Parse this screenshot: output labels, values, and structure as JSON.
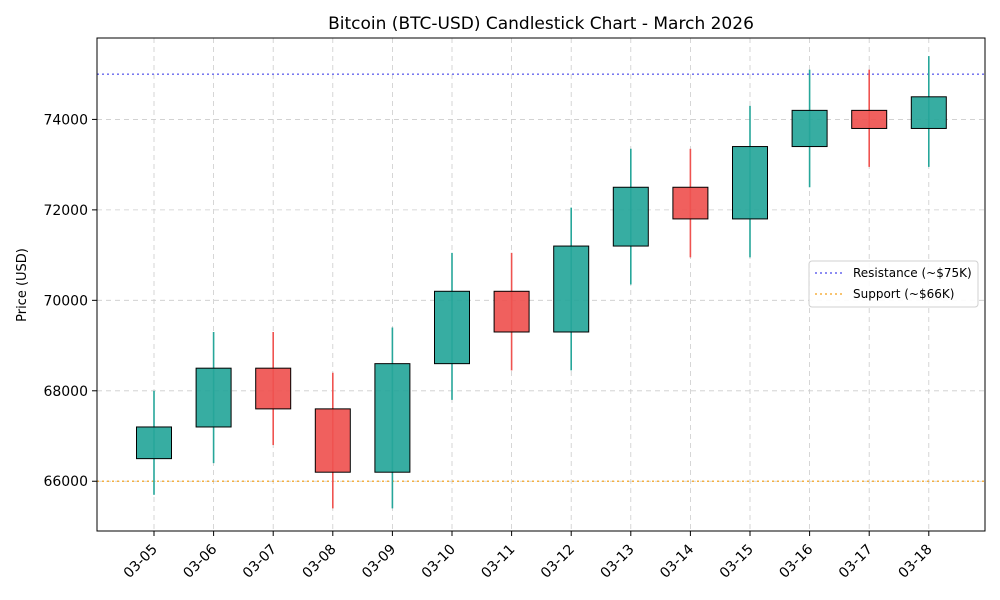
{
  "chart_data": {
    "type": "candlestick",
    "title": "Bitcoin (BTC-USD) Candlestick Chart - March 2026",
    "xlabel": "",
    "ylabel": "Price (USD)",
    "ylim": [
      64900,
      75800
    ],
    "yticks": [
      66000,
      68000,
      70000,
      72000,
      74000
    ],
    "grid": true,
    "legend_position": "center-right",
    "colors": {
      "up": "#26a69a",
      "down": "#ef5350",
      "resistance": "#6666ee",
      "support": "#f5b041"
    },
    "candles": [
      {
        "date": "03-05",
        "open": 66500,
        "high": 68000,
        "low": 65700,
        "close": 67200
      },
      {
        "date": "03-06",
        "open": 67200,
        "high": 69300,
        "low": 66400,
        "close": 68500
      },
      {
        "date": "03-07",
        "open": 68500,
        "high": 69300,
        "low": 66800,
        "close": 67600
      },
      {
        "date": "03-08",
        "open": 67600,
        "high": 68400,
        "low": 65400,
        "close": 66200
      },
      {
        "date": "03-09",
        "open": 66200,
        "high": 69400,
        "low": 65400,
        "close": 68600
      },
      {
        "date": "03-10",
        "open": 68600,
        "high": 71050,
        "low": 67800,
        "close": 70200
      },
      {
        "date": "03-11",
        "open": 70200,
        "high": 71050,
        "low": 68450,
        "close": 69300
      },
      {
        "date": "03-12",
        "open": 69300,
        "high": 72050,
        "low": 68450,
        "close": 71200
      },
      {
        "date": "03-13",
        "open": 71200,
        "high": 73350,
        "low": 70350,
        "close": 72500
      },
      {
        "date": "03-14",
        "open": 72500,
        "high": 73350,
        "low": 70950,
        "close": 71800
      },
      {
        "date": "03-15",
        "open": 71800,
        "high": 74300,
        "low": 70950,
        "close": 73400
      },
      {
        "date": "03-16",
        "open": 73400,
        "high": 75100,
        "low": 72500,
        "close": 74200
      },
      {
        "date": "03-17",
        "open": 74200,
        "high": 75100,
        "low": 72950,
        "close": 73800
      },
      {
        "date": "03-18",
        "open": 73800,
        "high": 75400,
        "low": 72950,
        "close": 74500
      }
    ],
    "reference_lines": [
      {
        "name": "Resistance (~$75K)",
        "value": 75000,
        "style": "dotted",
        "color": "#6666ee"
      },
      {
        "name": "Support (~$66K)",
        "value": 66000,
        "style": "dotted",
        "color": "#f5b041"
      }
    ]
  }
}
